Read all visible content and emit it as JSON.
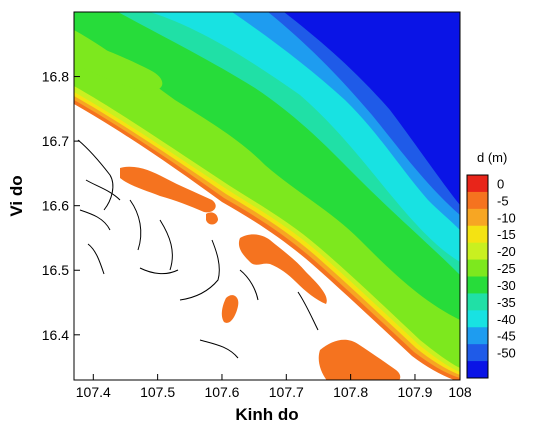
{
  "chart_data": {
    "type": "heatmap",
    "title": "",
    "xlabel": "Kinh do",
    "ylabel": "Vi do",
    "xlim": [
      107.37,
      107.97
    ],
    "ylim": [
      16.33,
      16.9
    ],
    "x_ticks": [
      "107.4",
      "107.5",
      "107.6",
      "107.7",
      "107.8",
      "107.9",
      "108"
    ],
    "y_ticks": [
      "16.4",
      "16.5",
      "16.6",
      "16.7",
      "16.8"
    ],
    "x_tick_values": [
      107.4,
      107.5,
      107.6,
      107.7,
      107.8,
      107.9,
      107.97
    ],
    "y_tick_values": [
      16.4,
      16.5,
      16.6,
      16.7,
      16.8
    ],
    "colorbar": {
      "title": "d (m)",
      "levels": [
        "0",
        "-5",
        "-10",
        "-15",
        "-20",
        "-25",
        "-30",
        "-35",
        "-40",
        "-45",
        "-50"
      ],
      "colors": [
        "#e8251a",
        "#f5731f",
        "#f7a623",
        "#f4e312",
        "#c9f020",
        "#7de81e",
        "#27dc3a",
        "#20e0a6",
        "#18e2e2",
        "#1e9cf0",
        "#1f5be8",
        "#0a14e6"
      ]
    },
    "depth_bands": [
      {
        "depth": "0 to -5",
        "color": "#f5731f"
      },
      {
        "depth": "-5 to -10",
        "color": "#f7a623"
      },
      {
        "depth": "-10 to -15",
        "color": "#f4e312"
      },
      {
        "depth": "-15 to -20",
        "color": "#c9f020"
      },
      {
        "depth": "-20 to -25",
        "color": "#7de81e"
      },
      {
        "depth": "-25 to -30",
        "color": "#27dc3a"
      },
      {
        "depth": "-30 to -35",
        "color": "#20e0a6"
      },
      {
        "depth": "-35 to -40",
        "color": "#18e2e2"
      },
      {
        "depth": "-40 to -45",
        "color": "#1e9cf0"
      },
      {
        "depth": "-45 to -50",
        "color": "#1f5be8"
      },
      {
        "depth": "< -50",
        "color": "#0a14e6"
      }
    ],
    "grid": false,
    "legend_position": "right"
  }
}
